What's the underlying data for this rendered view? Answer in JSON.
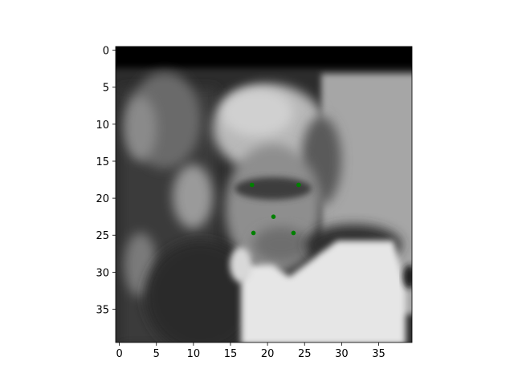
{
  "chart_data": {
    "type": "scatter",
    "background": "grayscale image: blurred close-up of an elderly man's face",
    "title": "",
    "xlabel": "",
    "ylabel": "",
    "xlim": [
      -0.5,
      39.5
    ],
    "ylim": [
      39.5,
      -0.5
    ],
    "y_inverted": true,
    "grid": false,
    "x_ticks": [
      0,
      5,
      10,
      15,
      20,
      25,
      30,
      35
    ],
    "y_ticks": [
      0,
      5,
      10,
      15,
      20,
      25,
      30,
      35
    ],
    "series": [
      {
        "marker_color": "#008000",
        "points": [
          {
            "x": 17.9,
            "y": 18.2
          },
          {
            "x": 24.2,
            "y": 18.2
          },
          {
            "x": 20.8,
            "y": 22.5
          },
          {
            "x": 18.1,
            "y": 24.7
          },
          {
            "x": 23.5,
            "y": 24.7
          }
        ]
      }
    ]
  }
}
